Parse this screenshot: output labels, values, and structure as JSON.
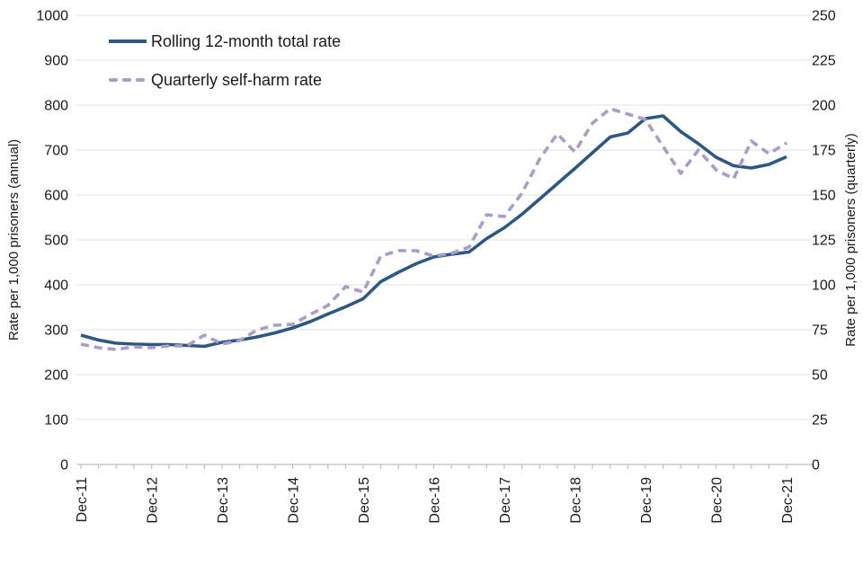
{
  "chart_data": {
    "type": "line",
    "title": "",
    "grid": "horizontal-only",
    "legend_position": "top-left",
    "x_unit": "quarter",
    "x_major_tick_labels": [
      "Dec-11",
      "Dec-12",
      "Dec-13",
      "Dec-14",
      "Dec-15",
      "Dec-16",
      "Dec-17",
      "Dec-18",
      "Dec-19",
      "Dec-20",
      "Dec-21"
    ],
    "x_major_tick_indices": [
      0,
      4,
      8,
      12,
      16,
      20,
      24,
      28,
      32,
      36,
      40
    ],
    "left_axis": {
      "label": "Rate per 1,000 prisoners (annual)",
      "min": 0,
      "max": 1000,
      "step": 100,
      "tick_labels": [
        "0",
        "100",
        "200",
        "300",
        "400",
        "500",
        "600",
        "700",
        "800",
        "900",
        "1000"
      ]
    },
    "right_axis": {
      "label": "Rate per 1,000 prisoners (quarterly)",
      "min": 0,
      "max": 250,
      "step": 25,
      "tick_labels": [
        "0",
        "25",
        "50",
        "75",
        "100",
        "125",
        "150",
        "175",
        "200",
        "225",
        "250"
      ]
    },
    "series": [
      {
        "name": "Rolling 12-month total rate",
        "axis": "left",
        "line_style": "solid",
        "color": "#2d5884",
        "values": [
          288,
          277,
          270,
          268,
          267,
          267,
          265,
          263,
          272,
          277,
          284,
          293,
          304,
          318,
          335,
          351,
          369,
          407,
          428,
          447,
          462,
          468,
          473,
          503,
          527,
          557,
          591,
          625,
          659,
          694,
          729,
          738,
          770,
          776,
          741,
          714,
          684,
          665,
          660,
          668,
          685
        ]
      },
      {
        "name": "Quarterly self-harm rate",
        "axis": "right",
        "line_style": "dashed",
        "color": "#ab9cc9",
        "values": [
          67,
          65,
          64,
          65.5,
          65,
          66,
          66,
          72,
          67,
          69,
          75,
          77.5,
          78,
          83.5,
          88.5,
          99,
          96,
          116,
          119,
          119,
          116,
          117.5,
          121,
          139,
          138,
          151,
          170,
          184,
          174,
          190,
          198,
          195,
          192,
          177,
          162,
          175,
          164,
          159,
          180,
          173,
          179
        ]
      }
    ],
    "colors": {
      "gridline": "#e6e6e6",
      "axis": "#c0c0c0",
      "text": "#1a1a1a"
    }
  }
}
